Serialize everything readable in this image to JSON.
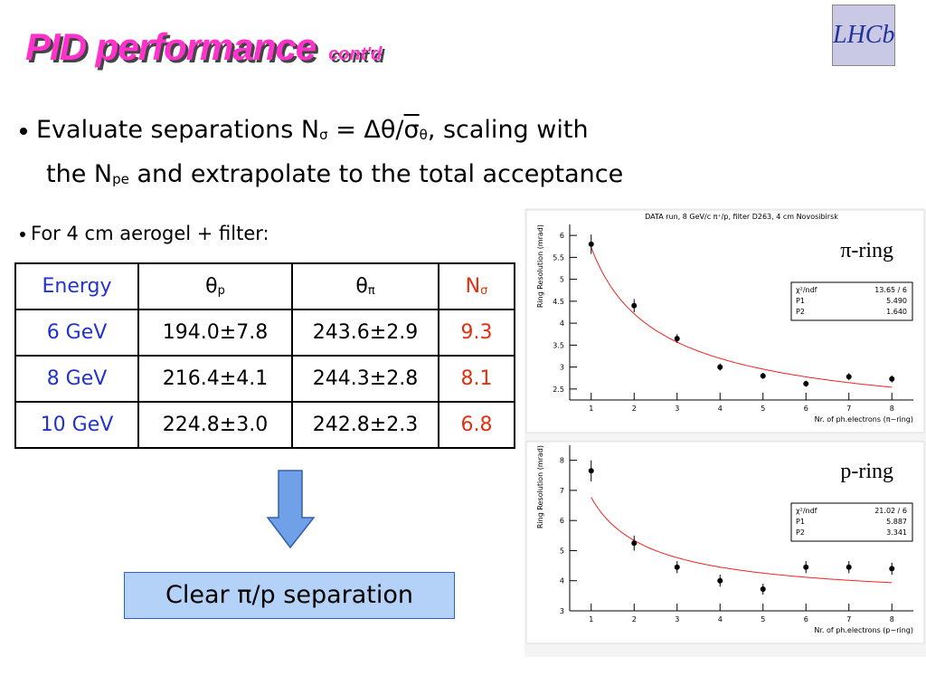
{
  "header": {
    "title": "PID performance",
    "subtitle": "cont'd",
    "logo": "LHCb"
  },
  "bullets": [
    {
      "parts": [
        "Evaluate separations N",
        "σ",
        " = Δθ/",
        "σ",
        "θ",
        ", scaling with",
        "the N",
        "pe",
        "and extrapolate to the total acceptance"
      ]
    },
    {
      "parts": [
        "For 4 cm aerogel + filter:"
      ]
    }
  ],
  "table": {
    "header": [
      [
        "Energy",
        ""
      ],
      [
        "θ",
        "p"
      ],
      [
        "θ",
        "π"
      ],
      [
        "N",
        "σ"
      ]
    ],
    "rows": [
      [
        "6 GeV",
        "194.0±7.8",
        "243.6±2.9",
        9.3
      ],
      [
        "8 GeV",
        "216.4±4.1",
        "244.3±2.8",
        8.1
      ],
      [
        "10 GeV",
        "224.8±3.0",
        "242.8±2.3",
        6.8
      ]
    ]
  },
  "result": "Clear π/p separation",
  "plots": [
    {
      "title": "DATA run, 8 GeV/c π⁺/p, filter D263, 4 cm Novosibirsk",
      "ylabel": "Ring Resolution (mrad)",
      "xlabel": "Nr. of ph.electrons (π−ring)",
      "label": "π-ring",
      "x": [
        1,
        2,
        3,
        4,
        5,
        6,
        7,
        8
      ],
      "y": [
        5.8,
        4.4,
        3.65,
        3.0,
        2.8,
        2.62,
        2.78,
        2.73
      ],
      "err": [
        0.22,
        0.15,
        0.1,
        0.08,
        0.07,
        0.07,
        0.08,
        0.08
      ],
      "xlim": [
        0.5,
        8.5
      ],
      "xticks": [
        1,
        2,
        3,
        4,
        5,
        6,
        7,
        8
      ],
      "ylim": [
        2.25,
        6.25
      ],
      "yticks": [
        2.5,
        3,
        3.5,
        4,
        4.5,
        5,
        5.5,
        6
      ],
      "stats": {
        "chi2_name": "χ²/ndf",
        "chi2": "13.65 / 6",
        "p1_name": "P1",
        "p1": {
          "value": 5.49,
          "label": "5.490"
        },
        "p2_name": "P2",
        "p2": {
          "value": 1.64,
          "label": "1.640"
        }
      }
    },
    {
      "title": "",
      "ylabel": "Ring Resolution (mrad)",
      "xlabel": "Nr. of ph.electrons (p−ring)",
      "label": "p-ring",
      "x": [
        1,
        2,
        3,
        4,
        5,
        6,
        7,
        8
      ],
      "y": [
        7.65,
        5.25,
        4.45,
        4.0,
        3.72,
        4.45,
        4.45,
        4.4
      ],
      "err": [
        0.35,
        0.25,
        0.2,
        0.2,
        0.18,
        0.2,
        0.2,
        0.2
      ],
      "xlim": [
        0.5,
        8.5
      ],
      "xticks": [
        1,
        2,
        3,
        4,
        5,
        6,
        7,
        8
      ],
      "ylim": [
        3,
        8.5
      ],
      "yticks": [
        3,
        4,
        5,
        6,
        7,
        8
      ],
      "stats": {
        "chi2_name": "χ²/ndf",
        "chi2": "21.02 / 6",
        "p1_name": "P1",
        "p1": {
          "value": 5.887,
          "label": "5.887"
        },
        "p2_name": "P2",
        "p2": {
          "value": 3.341,
          "label": "3.341"
        }
      }
    }
  ]
}
